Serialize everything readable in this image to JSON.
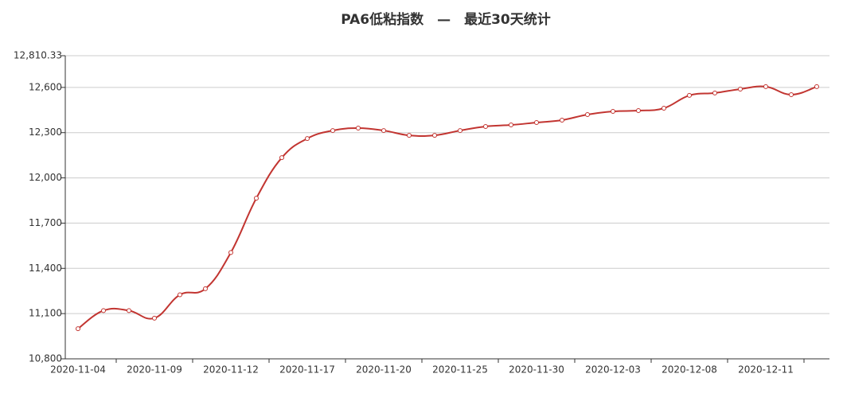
{
  "chart_data": {
    "type": "line",
    "title": "PA6低粘指数　—　最近30天统计",
    "categories": [
      "2020-11-04",
      null,
      null,
      "2020-11-09",
      null,
      null,
      "2020-11-12",
      null,
      null,
      "2020-11-17",
      null,
      null,
      "2020-11-20",
      null,
      null,
      "2020-11-25",
      null,
      null,
      "2020-11-30",
      null,
      null,
      "2020-12-03",
      null,
      null,
      "2020-12-08",
      null,
      null,
      "2020-12-11",
      null,
      null
    ],
    "values": [
      11000,
      11120,
      11120,
      11070,
      11225,
      11265,
      11505,
      11865,
      12134,
      12261,
      12314,
      12330,
      12314,
      12282,
      12282,
      12314,
      12341,
      12351,
      12367,
      12383,
      12420,
      12441,
      12446,
      12462,
      12547,
      12563,
      12589,
      12605,
      12552,
      12605
    ],
    "color": "#c23531",
    "ylim": [
      10800,
      12810.33
    ],
    "yticks": [
      {
        "value": 10800,
        "label": "10,800"
      },
      {
        "value": 11100,
        "label": "11,100"
      },
      {
        "value": 11400,
        "label": "11,400"
      },
      {
        "value": 11700,
        "label": "11,700"
      },
      {
        "value": 12000,
        "label": "12,000"
      },
      {
        "value": 12300,
        "label": "12,300"
      },
      {
        "value": 12600,
        "label": "12,600"
      },
      {
        "value": 12810.33,
        "label": "12,810.33"
      }
    ],
    "grid": true
  }
}
